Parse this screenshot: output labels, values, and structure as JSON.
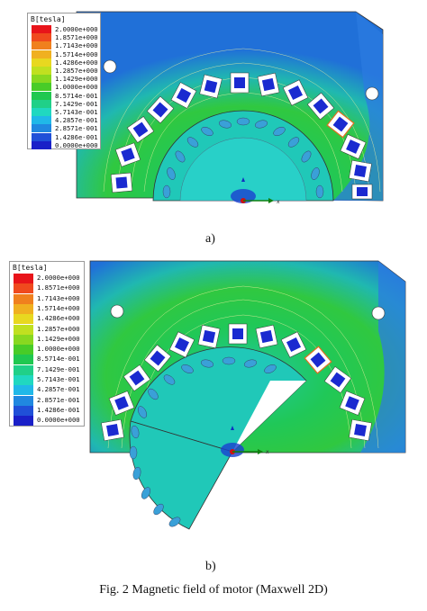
{
  "legend": {
    "title": "B[tesla]",
    "values": [
      "2.0000e+000",
      "1.8571e+000",
      "1.7143e+000",
      "1.5714e+000",
      "1.4286e+000",
      "1.2857e+000",
      "1.1429e+000",
      "1.0000e+000",
      "8.5714e-001",
      "7.1429e-001",
      "5.7143e-001",
      "4.2857e-001",
      "2.8571e-001",
      "1.4286e-001",
      "0.0000e+000"
    ],
    "colors": [
      "#e8141a",
      "#f04a1e",
      "#f0801e",
      "#f0b020",
      "#e8d820",
      "#c0e020",
      "#88d820",
      "#48cc28",
      "#20c850",
      "#20d088",
      "#20d8c0",
      "#20b8e8",
      "#2088e0",
      "#2050d8",
      "#1a20c8"
    ]
  },
  "panels": [
    {
      "label": "a)",
      "axis_label": "x"
    },
    {
      "label": "b)",
      "axis_label": "x"
    }
  ],
  "caption": "Fig. 2 Magnetic field of motor (Maxwell 2D)"
}
